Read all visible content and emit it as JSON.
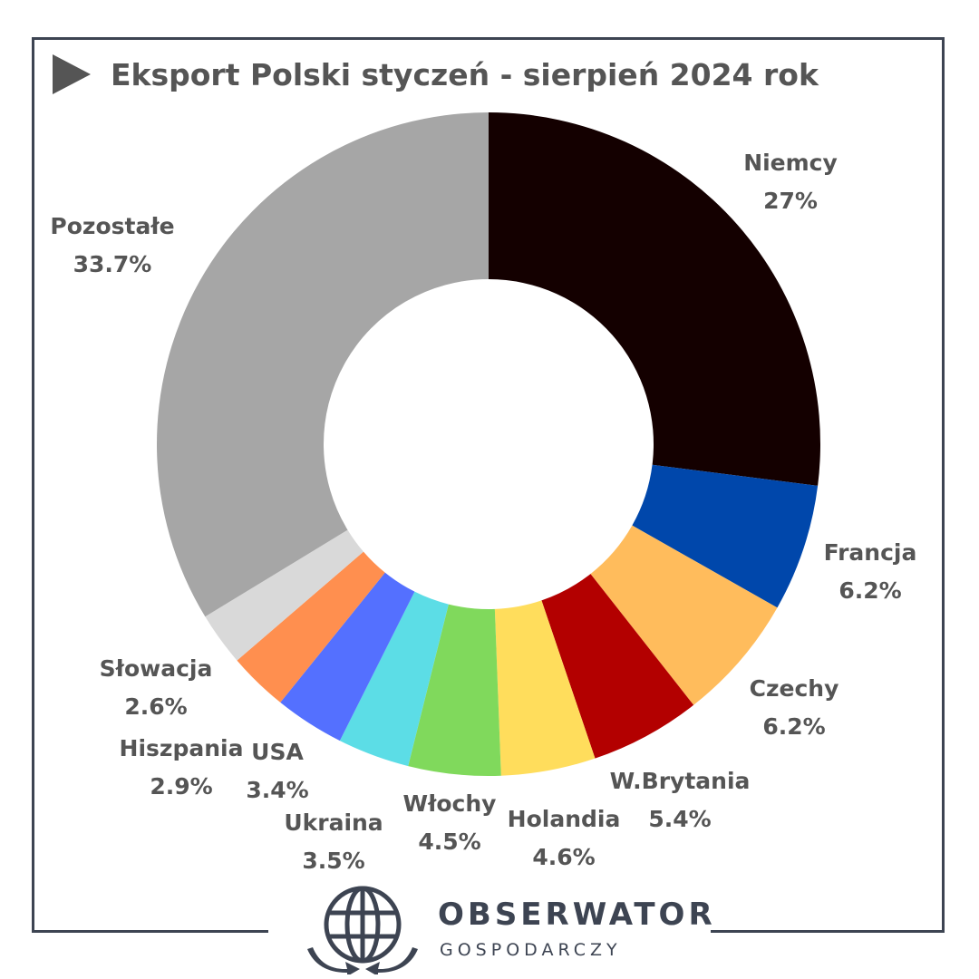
{
  "title": "Eksport Polski styczeń - sierpień 2024 rok",
  "brand": {
    "name": "OBSERWATOR",
    "subtitle": "GOSPODARCZY",
    "icon": "globe-arrows-icon",
    "color": "#3d4452"
  },
  "chart_data": {
    "type": "pie",
    "hole": "donut",
    "start": "top",
    "direction": "clockwise",
    "legend": "none",
    "slices": [
      {
        "label": "Niemcy",
        "value": 27,
        "value_label": "27%",
        "color": "#140000"
      },
      {
        "label": "Francja",
        "value": 6.2,
        "value_label": "6.2%",
        "color": "#0047ab"
      },
      {
        "label": "Czechy",
        "value": 6.2,
        "value_label": "6.2%",
        "color": "#ffbc5c"
      },
      {
        "label": "W.Brytania",
        "value": 5.4,
        "value_label": "5.4%",
        "color": "#b30000"
      },
      {
        "label": "Holandia",
        "value": 4.6,
        "value_label": "4.6%",
        "color": "#ffdd5c"
      },
      {
        "label": "Włochy",
        "value": 4.5,
        "value_label": "4.5%",
        "color": "#80d95c"
      },
      {
        "label": "Ukraina",
        "value": 3.5,
        "value_label": "3.5%",
        "color": "#5cdde6"
      },
      {
        "label": "USA",
        "value": 3.4,
        "value_label": "3.4%",
        "color": "#5470ff"
      },
      {
        "label": "Hiszpania",
        "value": 2.9,
        "value_label": "2.9%",
        "color": "#ff8f4f"
      },
      {
        "label": "Słowacja",
        "value": 2.6,
        "value_label": "2.6%",
        "color": "#d9d9d9"
      },
      {
        "label": "Pozostałe",
        "value": 33.7,
        "value_label": "33.7%",
        "color": "#a6a6a6"
      }
    ]
  }
}
